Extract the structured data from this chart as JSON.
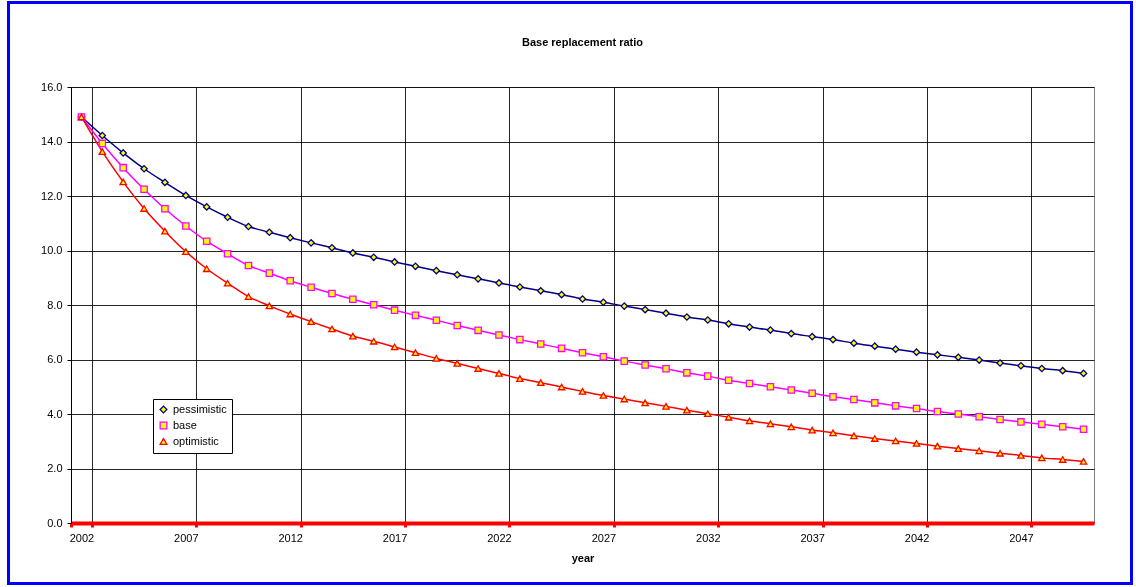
{
  "chart_data": {
    "type": "line",
    "title": "Base replacement ratio",
    "xlabel": "year",
    "categories": [
      "2002",
      null,
      null,
      null,
      null,
      "2007",
      null,
      null,
      null,
      null,
      "2012",
      null,
      null,
      null,
      null,
      "2017",
      null,
      null,
      null,
      null,
      "2022",
      null,
      null,
      null,
      null,
      "2027",
      null,
      null,
      null,
      null,
      "2032",
      null,
      null,
      null,
      null,
      "2037",
      null,
      null,
      null,
      null,
      "2042",
      null,
      null,
      null,
      null,
      "2047",
      null,
      null,
      null
    ],
    "series": [
      {
        "name": "pessimistic",
        "color": "#000080",
        "marker": "diamond",
        "values": [
          14.9,
          14.22,
          13.58,
          13.0,
          12.5,
          12.02,
          11.6,
          11.22,
          10.88,
          10.67,
          10.47,
          10.28,
          10.1,
          9.91,
          9.75,
          9.58,
          9.42,
          9.26,
          9.11,
          8.96,
          8.81,
          8.66,
          8.52,
          8.38,
          8.22,
          8.1,
          7.96,
          7.83,
          7.7,
          7.56,
          7.45,
          7.31,
          7.19,
          7.08,
          6.95,
          6.84,
          6.73,
          6.6,
          6.49,
          6.38,
          6.27,
          6.17,
          6.08,
          5.98,
          5.87,
          5.77,
          5.67,
          5.59,
          5.49
        ]
      },
      {
        "name": "base",
        "color": "#ff00ff",
        "marker": "square",
        "values": [
          14.9,
          13.93,
          13.04,
          12.25,
          11.53,
          10.9,
          10.34,
          9.88,
          9.45,
          9.17,
          8.89,
          8.65,
          8.42,
          8.21,
          8.01,
          7.81,
          7.62,
          7.44,
          7.25,
          7.07,
          6.9,
          6.73,
          6.57,
          6.41,
          6.25,
          6.1,
          5.94,
          5.8,
          5.66,
          5.51,
          5.39,
          5.24,
          5.12,
          5.0,
          4.88,
          4.76,
          4.63,
          4.53,
          4.41,
          4.3,
          4.2,
          4.09,
          4.0,
          3.9,
          3.8,
          3.71,
          3.62,
          3.53,
          3.44
        ]
      },
      {
        "name": "optimistic",
        "color": "#ff0000",
        "marker": "triangle",
        "values": [
          14.9,
          13.63,
          12.52,
          11.54,
          10.71,
          9.96,
          9.33,
          8.8,
          8.31,
          7.97,
          7.67,
          7.39,
          7.12,
          6.86,
          6.67,
          6.46,
          6.25,
          6.04,
          5.86,
          5.67,
          5.49,
          5.3,
          5.15,
          4.99,
          4.83,
          4.68,
          4.55,
          4.41,
          4.28,
          4.14,
          4.01,
          3.88,
          3.75,
          3.64,
          3.53,
          3.41,
          3.31,
          3.2,
          3.1,
          3.01,
          2.92,
          2.82,
          2.73,
          2.65,
          2.56,
          2.48,
          2.39,
          2.33,
          2.26
        ]
      }
    ],
    "ylim": [
      0,
      16
    ],
    "yticks": [
      {
        "value": 0,
        "label": "0.0"
      },
      {
        "value": 2,
        "label": "2.0"
      },
      {
        "value": 4,
        "label": "4.0"
      },
      {
        "value": 6,
        "label": "6.0"
      },
      {
        "value": 8,
        "label": "8.0"
      },
      {
        "value": 10,
        "label": "10.0"
      },
      {
        "value": 12,
        "label": "12.0"
      },
      {
        "value": 14,
        "label": "14.0"
      },
      {
        "value": 16,
        "label": "16.0"
      }
    ],
    "grid": true,
    "legend": "bottom left"
  }
}
